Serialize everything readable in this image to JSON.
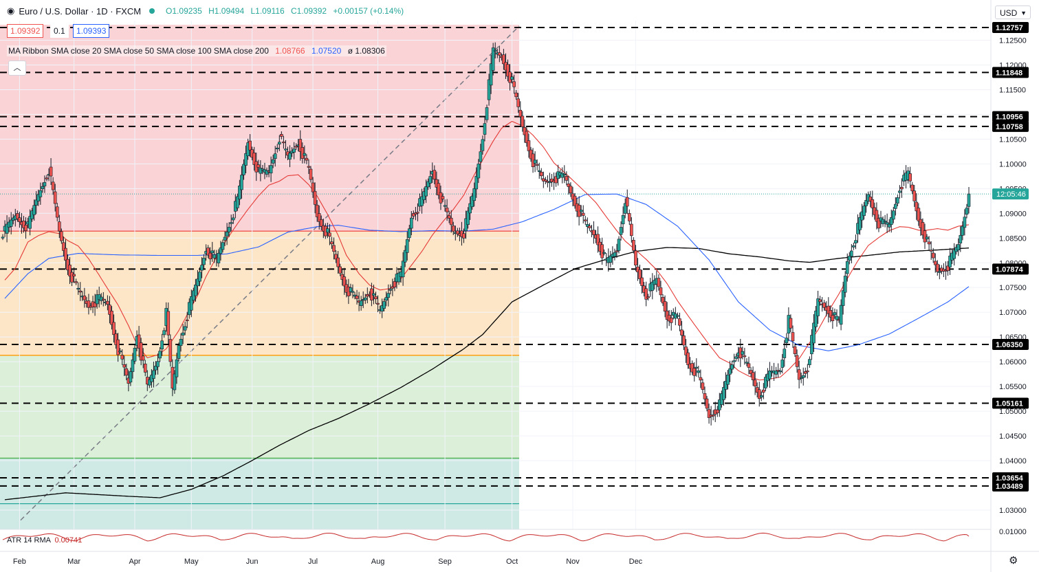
{
  "header": {
    "symbol_icon": "euro-dollar-flag-icon",
    "title": "Euro / U.S. Dollar · 1D · FXCM",
    "open": "O1.09235",
    "high": "H1.09494",
    "low": "L1.09116",
    "close": "C1.09392",
    "change": "+0.00157 (+0.14%)"
  },
  "price_boxes": {
    "bid": "1.09392",
    "spread": "0.1",
    "ask": "1.09393"
  },
  "ma_legend": {
    "label": "MA Ribbon SMA close 20 SMA close 50 SMA close 100 SMA close 200",
    "v1": "1.08766",
    "v2": "1.07520",
    "v3_prefix": "ø",
    "v3": "1.08306"
  },
  "currency_button": "USD",
  "atr_legend": {
    "label": "ATR 14 RMA",
    "value": "0.00741"
  },
  "colors": {
    "bull": "#26a69a",
    "bear": "#ef5350",
    "ma20": "#e53935",
    "ma50": "#2962ff",
    "ma200": "#000000"
  },
  "chart_data": {
    "type": "candlestick",
    "y_ticks": [
      "1.12500",
      "1.12000",
      "1.11500",
      "1.11000",
      "1.10500",
      "1.10000",
      "1.09500",
      "1.09000",
      "1.08500",
      "1.08000",
      "1.07500",
      "1.07000",
      "1.06500",
      "1.06000",
      "1.05500",
      "1.05000",
      "1.04500",
      "1.04000",
      "1.03000"
    ],
    "x_ticks": [
      "Feb",
      "Mar",
      "Apr",
      "May",
      "Jun",
      "Jul",
      "Aug",
      "Sep",
      "Oct",
      "Nov",
      "Dec"
    ],
    "countdown_label": "12:05:46",
    "level_labels": [
      "1.12757",
      "1.11848",
      "1.10956",
      "1.10758",
      "1.07874",
      "1.06350",
      "1.05161",
      "1.03654",
      "1.03489"
    ],
    "levels": [
      1.12757,
      1.11848,
      1.10956,
      1.10758,
      1.07874,
      1.0635,
      1.05161,
      1.03654,
      1.03489
    ],
    "fib_levels": [
      1.12757,
      1.0864,
      1.0613,
      1.0405,
      1.0313
    ],
    "last_close": 1.09392,
    "atr_tick": "0.01000",
    "atr_value": 0.00741,
    "close_path": [
      [
        1,
        1.0863
      ],
      [
        6,
        1.0895
      ],
      [
        12,
        1.0872
      ],
      [
        17,
        1.0938
      ],
      [
        22,
        1.099
      ],
      [
        27,
        1.0862
      ],
      [
        31,
        1.0792
      ],
      [
        36,
        1.0742
      ],
      [
        41,
        1.0714
      ],
      [
        46,
        1.0727
      ],
      [
        50,
        1.0716
      ],
      [
        55,
        1.0625
      ],
      [
        60,
        1.0554
      ],
      [
        64,
        1.0658
      ],
      [
        69,
        1.0548
      ],
      [
        74,
        1.0605
      ],
      [
        78,
        1.0697
      ],
      [
        81,
        1.0542
      ],
      [
        84,
        1.0635
      ],
      [
        88,
        1.0695
      ],
      [
        93,
        1.0765
      ],
      [
        97,
        1.083
      ],
      [
        102,
        1.0802
      ],
      [
        107,
        1.0867
      ],
      [
        112,
        1.0925
      ],
      [
        117,
        1.1045
      ],
      [
        122,
        1.0982
      ],
      [
        127,
        1.0985
      ],
      [
        132,
        1.1055
      ],
      [
        136,
        1.1013
      ],
      [
        141,
        1.1045
      ],
      [
        146,
        1.0987
      ],
      [
        150,
        1.0895
      ],
      [
        155,
        1.0858
      ],
      [
        160,
        1.0792
      ],
      [
        164,
        1.0749
      ],
      [
        170,
        1.0718
      ],
      [
        175,
        1.0744
      ],
      [
        180,
        1.0701
      ],
      [
        185,
        1.0753
      ],
      [
        190,
        1.0775
      ],
      [
        195,
        1.0895
      ],
      [
        200,
        1.0925
      ],
      [
        205,
        1.0987
      ],
      [
        210,
        1.0918
      ],
      [
        215,
        1.0864
      ],
      [
        220,
        1.0861
      ],
      [
        225,
        1.0948
      ],
      [
        229,
        1.1056
      ],
      [
        234,
        1.1228
      ],
      [
        238,
        1.1217
      ],
      [
        243,
        1.1165
      ],
      [
        248,
        1.1075
      ],
      [
        253,
        1.1005
      ],
      [
        258,
        1.0963
      ],
      [
        263,
        1.0972
      ],
      [
        268,
        1.0975
      ],
      [
        273,
        1.0922
      ],
      [
        278,
        1.0878
      ],
      [
        283,
        1.0854
      ],
      [
        288,
        1.0799
      ],
      [
        293,
        1.0826
      ],
      [
        297,
        1.0931
      ],
      [
        302,
        1.0793
      ],
      [
        307,
        1.0735
      ],
      [
        312,
        1.0764
      ],
      [
        317,
        1.0692
      ],
      [
        322,
        1.0687
      ],
      [
        327,
        1.0598
      ],
      [
        332,
        1.0573
      ],
      [
        337,
        1.0489
      ],
      [
        342,
        1.0512
      ],
      [
        347,
        1.0586
      ],
      [
        351,
        1.0627
      ],
      [
        356,
        1.0584
      ],
      [
        361,
        1.0532
      ],
      [
        366,
        1.0575
      ],
      [
        371,
        1.0586
      ],
      [
        375,
        1.0683
      ],
      [
        380,
        1.0564
      ],
      [
        384,
        1.0589
      ],
      [
        389,
        1.0723
      ],
      [
        394,
        1.0704
      ],
      [
        399,
        1.0678
      ],
      [
        403,
        1.0805
      ],
      [
        408,
        1.0869
      ],
      [
        413,
        1.0938
      ],
      [
        418,
        1.0881
      ],
      [
        423,
        1.0876
      ],
      [
        428,
        1.0954
      ],
      [
        432,
        1.0979
      ],
      [
        437,
        1.0889
      ],
      [
        441,
        1.0841
      ],
      [
        446,
        1.0782
      ],
      [
        451,
        1.0795
      ],
      [
        456,
        1.0835
      ],
      [
        461,
        1.0938
      ]
    ],
    "ma20_path": [
      [
        1,
        1.0765
      ],
      [
        6,
        1.0789
      ],
      [
        12,
        1.0842
      ],
      [
        17,
        1.0855
      ],
      [
        22,
        1.0863
      ],
      [
        27,
        1.0859
      ],
      [
        31,
        1.0845
      ],
      [
        36,
        1.0834
      ],
      [
        41,
        1.0808
      ],
      [
        46,
        1.0775
      ],
      [
        50,
        1.0748
      ],
      [
        55,
        1.0715
      ],
      [
        60,
        1.0673
      ],
      [
        64,
        1.0635
      ],
      [
        69,
        1.0608
      ],
      [
        74,
        1.0614
      ],
      [
        78,
        1.0626
      ],
      [
        81,
        1.0644
      ],
      [
        84,
        1.0663
      ],
      [
        88,
        1.0695
      ],
      [
        93,
        1.0734
      ],
      [
        97,
        1.0772
      ],
      [
        102,
        1.0812
      ],
      [
        107,
        1.0848
      ],
      [
        112,
        1.0879
      ],
      [
        117,
        1.0908
      ],
      [
        122,
        1.0935
      ],
      [
        127,
        1.0957
      ],
      [
        132,
        1.0965
      ],
      [
        136,
        1.0976
      ],
      [
        141,
        1.0978
      ],
      [
        146,
        1.0958
      ],
      [
        150,
        1.0935
      ],
      [
        155,
        1.0898
      ],
      [
        160,
        1.0856
      ],
      [
        164,
        1.0815
      ],
      [
        170,
        1.0778
      ],
      [
        175,
        1.0755
      ],
      [
        180,
        1.0745
      ],
      [
        185,
        1.0748
      ],
      [
        190,
        1.0768
      ],
      [
        195,
        1.0795
      ],
      [
        200,
        1.0823
      ],
      [
        205,
        1.0856
      ],
      [
        210,
        1.0883
      ],
      [
        215,
        1.0908
      ],
      [
        220,
        1.0937
      ],
      [
        225,
        1.0978
      ],
      [
        229,
        1.1008
      ],
      [
        234,
        1.1046
      ],
      [
        238,
        1.1072
      ],
      [
        243,
        1.1086
      ],
      [
        248,
        1.1077
      ],
      [
        253,
        1.1058
      ],
      [
        258,
        1.1034
      ],
      [
        263,
        1.1002
      ],
      [
        268,
        1.0983
      ],
      [
        273,
        1.0963
      ],
      [
        278,
        1.0943
      ],
      [
        283,
        1.0922
      ],
      [
        288,
        1.0893
      ],
      [
        293,
        1.0865
      ],
      [
        297,
        1.0844
      ],
      [
        302,
        1.0826
      ],
      [
        307,
        1.0807
      ],
      [
        312,
        1.0786
      ],
      [
        317,
        1.0758
      ],
      [
        322,
        1.0723
      ],
      [
        327,
        1.0693
      ],
      [
        332,
        1.0664
      ],
      [
        337,
        1.0635
      ],
      [
        342,
        1.0608
      ],
      [
        347,
        1.0597
      ],
      [
        351,
        1.0582
      ],
      [
        356,
        1.0571
      ],
      [
        361,
        1.0563
      ],
      [
        366,
        1.0565
      ],
      [
        371,
        1.0569
      ],
      [
        375,
        1.0584
      ],
      [
        380,
        1.0606
      ],
      [
        384,
        1.0632
      ],
      [
        389,
        1.0664
      ],
      [
        394,
        1.0702
      ],
      [
        399,
        1.0737
      ],
      [
        403,
        1.0768
      ],
      [
        408,
        1.0804
      ],
      [
        413,
        1.0835
      ],
      [
        418,
        1.0851
      ],
      [
        423,
        1.0865
      ],
      [
        428,
        1.0873
      ],
      [
        432,
        1.0872
      ],
      [
        437,
        1.0866
      ],
      [
        441,
        1.0866
      ],
      [
        446,
        1.0869
      ],
      [
        451,
        1.0866
      ],
      [
        456,
        1.0874
      ],
      [
        461,
        1.0877
      ]
    ],
    "ma50_path": [
      [
        1,
        1.0728
      ],
      [
        12,
        1.0778
      ],
      [
        22,
        1.0809
      ],
      [
        36,
        1.0819
      ],
      [
        55,
        1.0816
      ],
      [
        74,
        1.0815
      ],
      [
        93,
        1.0815
      ],
      [
        107,
        1.0818
      ],
      [
        122,
        1.0832
      ],
      [
        136,
        1.0862
      ],
      [
        150,
        1.0873
      ],
      [
        160,
        1.0876
      ],
      [
        175,
        1.0866
      ],
      [
        190,
        1.0863
      ],
      [
        205,
        1.0865
      ],
      [
        220,
        1.0864
      ],
      [
        234,
        1.0868
      ],
      [
        248,
        1.0883
      ],
      [
        263,
        1.0908
      ],
      [
        278,
        1.0938
      ],
      [
        293,
        1.0939
      ],
      [
        307,
        1.0918
      ],
      [
        322,
        1.0874
      ],
      [
        337,
        1.0806
      ],
      [
        351,
        1.0721
      ],
      [
        366,
        1.0664
      ],
      [
        380,
        1.0633
      ],
      [
        394,
        1.0622
      ],
      [
        408,
        1.0634
      ],
      [
        423,
        1.0656
      ],
      [
        437,
        1.0688
      ],
      [
        451,
        1.0721
      ],
      [
        461,
        1.0752
      ]
    ],
    "ma200_path": [
      [
        1,
        1.0321
      ],
      [
        30,
        1.0335
      ],
      [
        60,
        1.0328
      ],
      [
        75,
        1.0325
      ],
      [
        90,
        1.0342
      ],
      [
        105,
        1.0369
      ],
      [
        118,
        1.0398
      ],
      [
        132,
        1.0431
      ],
      [
        146,
        1.0461
      ],
      [
        160,
        1.0485
      ],
      [
        175,
        1.0515
      ],
      [
        190,
        1.0548
      ],
      [
        205,
        1.0585
      ],
      [
        220,
        1.0626
      ],
      [
        229,
        1.0655
      ],
      [
        243,
        1.0721
      ],
      [
        258,
        1.0755
      ],
      [
        273,
        1.0788
      ],
      [
        288,
        1.0807
      ],
      [
        302,
        1.0823
      ],
      [
        317,
        1.0831
      ],
      [
        332,
        1.0829
      ],
      [
        347,
        1.0818
      ],
      [
        361,
        1.0812
      ],
      [
        375,
        1.0804
      ],
      [
        385,
        1.0801
      ],
      [
        399,
        1.0809
      ],
      [
        413,
        1.0815
      ],
      [
        428,
        1.0822
      ],
      [
        446,
        1.0826
      ],
      [
        461,
        1.083
      ]
    ]
  }
}
